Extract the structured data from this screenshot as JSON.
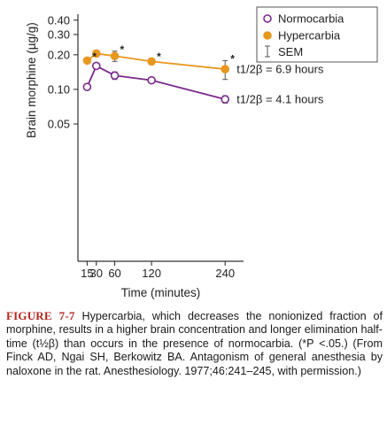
{
  "chart_data": {
    "type": "line",
    "ylabel": "Brain morphine (µg/g)",
    "xlabel": "Time (minutes)",
    "x_ticks": [
      15,
      30,
      60,
      120,
      240
    ],
    "x_tick_labels": [
      "15",
      "30",
      "60",
      "120",
      "240"
    ],
    "xlim": [
      0,
      270
    ],
    "y_scale": "log",
    "ylim": [
      0.0032,
      0.42
    ],
    "y_ticks": [
      0.05,
      0.1,
      0.2,
      0.3,
      0.4
    ],
    "y_tick_labels": [
      "0.05",
      "0.10",
      "0.20",
      "0.30",
      "0.40"
    ],
    "legend_position": "top-right",
    "legend": {
      "normocarbia": "Normocarbia",
      "hypercarbia": "Hypercarbia",
      "sem": "SEM"
    },
    "series": [
      {
        "name": "Normocarbia",
        "marker": "open-circle",
        "color": "#7b2a8c",
        "x": [
          15,
          30,
          60,
          120,
          240
        ],
        "y": [
          0.105,
          0.16,
          0.132,
          0.12,
          0.082
        ],
        "sem": [
          0.006,
          0.006,
          0.01,
          0.007,
          0.006
        ],
        "half_life_label": "t1/2β = 4.1 hours"
      },
      {
        "name": "Hypercarbia",
        "marker": "filled-circle",
        "color": "#e8971f",
        "x": [
          15,
          30,
          60,
          120,
          240
        ],
        "y": [
          0.178,
          0.205,
          0.195,
          0.175,
          0.15
        ],
        "sem": [
          0.007,
          0.012,
          0.02,
          0.01,
          0.028
        ],
        "significant": [
          true,
          false,
          true,
          true,
          true
        ],
        "half_life_label": "t1/2β = 6.9 hours"
      }
    ]
  },
  "caption": {
    "figure_label": "FIGURE 7-7",
    "text": "Hypercarbia, which decreases the nonionized fraction of morphine, results in a higher brain concentration and longer elimination half-time (t½β) than occurs in the presence of normocarbia. (*P <.05.) (From Finck AD, Ngai SH, Berkowitz BA. Antagonism of general anesthesia by naloxone in the rat. Anesthesiology. 1977;46:241–245, with permission.)"
  }
}
